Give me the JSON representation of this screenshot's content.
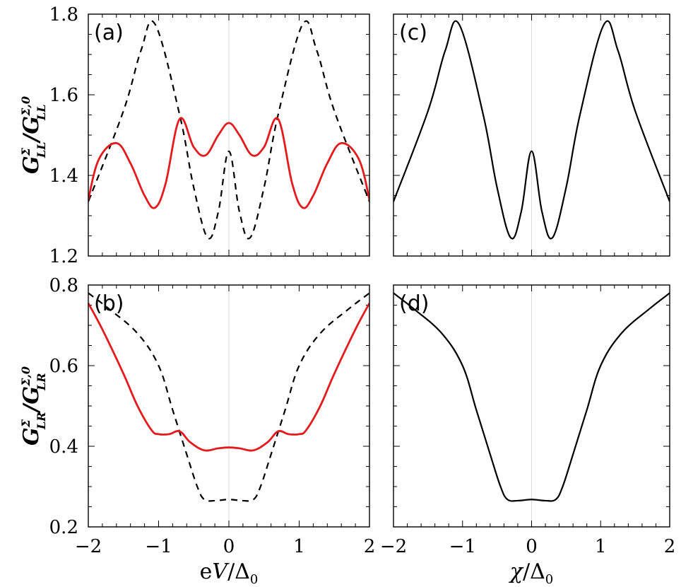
{
  "chart_data": [
    {
      "panel": "a",
      "type": "line",
      "label": "(a)",
      "xlim": [
        -2,
        2
      ],
      "ylim": [
        1.2,
        1.8
      ],
      "yticks": [
        "1.2",
        "1.4",
        "1.6",
        "1.8"
      ],
      "ylabel": {
        "base": "G",
        "sup": "Σ",
        "sub": "LL",
        "den_sup": "Σ,0",
        "den_sub": "LL"
      },
      "series": [
        {
          "color": "#000000",
          "dash": "dashed",
          "x": [
            -2,
            -1.5,
            -1.25,
            -1.05,
            -0.7,
            -0.5,
            -0.3,
            -0.15,
            0,
            0.15,
            0.3,
            0.5,
            0.7,
            1.05,
            1.25,
            1.5,
            2
          ],
          "y": [
            1.335,
            1.56,
            1.71,
            1.775,
            1.55,
            1.37,
            1.245,
            1.31,
            1.46,
            1.31,
            1.245,
            1.37,
            1.55,
            1.775,
            1.71,
            1.56,
            1.335
          ]
        },
        {
          "color": "#e41a1c",
          "dash": "solid",
          "x": [
            -2,
            -1.85,
            -1.6,
            -1.4,
            -1.2,
            -1.05,
            -0.9,
            -0.7,
            -0.5,
            -0.33,
            -0.15,
            0,
            0.15,
            0.33,
            0.5,
            0.7,
            0.9,
            1.05,
            1.2,
            1.4,
            1.6,
            1.85,
            2
          ],
          "y": [
            1.34,
            1.44,
            1.48,
            1.43,
            1.35,
            1.32,
            1.38,
            1.54,
            1.47,
            1.45,
            1.5,
            1.53,
            1.5,
            1.45,
            1.47,
            1.54,
            1.38,
            1.32,
            1.35,
            1.43,
            1.48,
            1.44,
            1.34
          ]
        }
      ]
    },
    {
      "panel": "b",
      "type": "line",
      "label": "(b)",
      "xlim": [
        -2,
        2
      ],
      "ylim": [
        0.2,
        0.8
      ],
      "yticks": [
        "0.2",
        "0.4",
        "0.6",
        "0.8"
      ],
      "xticks": [
        "−2",
        "−1",
        "0",
        "1",
        "2"
      ],
      "xlabel": {
        "pre": "e",
        "italic": "V",
        "den": "Δ",
        "den_sub": "0"
      },
      "ylabel": {
        "base": "G",
        "sup": "Σ",
        "sub": "LR",
        "den_sup": "Σ,0",
        "den_sub": "LR"
      },
      "series": [
        {
          "color": "#000000",
          "dash": "dashed",
          "x": [
            -2,
            -1.7,
            -1.3,
            -1.0,
            -0.8,
            -0.6,
            -0.45,
            -0.35,
            -0.2,
            0,
            0.2,
            0.35,
            0.45,
            0.6,
            0.8,
            1.0,
            1.3,
            1.7,
            2
          ],
          "y": [
            0.78,
            0.74,
            0.68,
            0.6,
            0.49,
            0.38,
            0.3,
            0.268,
            0.265,
            0.268,
            0.265,
            0.268,
            0.3,
            0.38,
            0.49,
            0.6,
            0.68,
            0.74,
            0.78
          ]
        },
        {
          "color": "#e41a1c",
          "dash": "solid",
          "x": [
            -2,
            -1.8,
            -1.5,
            -1.3,
            -1.1,
            -1.0,
            -0.85,
            -0.7,
            -0.55,
            -0.35,
            -0.15,
            0,
            0.15,
            0.35,
            0.55,
            0.7,
            0.85,
            1.0,
            1.1,
            1.3,
            1.5,
            1.8,
            2
          ],
          "y": [
            0.755,
            0.69,
            0.58,
            0.5,
            0.44,
            0.43,
            0.43,
            0.437,
            0.41,
            0.39,
            0.395,
            0.397,
            0.395,
            0.39,
            0.41,
            0.437,
            0.43,
            0.43,
            0.44,
            0.5,
            0.58,
            0.69,
            0.755
          ]
        }
      ]
    },
    {
      "panel": "c",
      "type": "line",
      "label": "(c)",
      "xlim": [
        -2,
        2
      ],
      "ylim": [
        1.2,
        1.8
      ],
      "series": [
        {
          "color": "#000000",
          "dash": "solid",
          "x": [
            -2,
            -1.5,
            -1.25,
            -1.05,
            -0.7,
            -0.5,
            -0.3,
            -0.15,
            0,
            0.15,
            0.3,
            0.5,
            0.7,
            1.05,
            1.25,
            1.5,
            2
          ],
          "y": [
            1.335,
            1.56,
            1.71,
            1.775,
            1.55,
            1.37,
            1.245,
            1.31,
            1.46,
            1.31,
            1.245,
            1.37,
            1.55,
            1.775,
            1.71,
            1.56,
            1.335
          ]
        }
      ]
    },
    {
      "panel": "d",
      "type": "line",
      "label": "(d)",
      "xlim": [
        -2,
        2
      ],
      "ylim": [
        0.2,
        0.8
      ],
      "xticks": [
        "−2",
        "−1",
        "0",
        "1",
        "2"
      ],
      "xlabel": {
        "italic": "χ",
        "den": "Δ",
        "den_sub": "0"
      },
      "series": [
        {
          "color": "#000000",
          "dash": "solid",
          "x": [
            -2,
            -1.7,
            -1.3,
            -1.0,
            -0.8,
            -0.6,
            -0.45,
            -0.35,
            -0.2,
            0,
            0.2,
            0.35,
            0.45,
            0.6,
            0.8,
            1.0,
            1.3,
            1.7,
            2
          ],
          "y": [
            0.78,
            0.74,
            0.68,
            0.6,
            0.49,
            0.38,
            0.3,
            0.268,
            0.265,
            0.268,
            0.265,
            0.268,
            0.3,
            0.38,
            0.49,
            0.6,
            0.68,
            0.74,
            0.78
          ]
        }
      ]
    }
  ]
}
